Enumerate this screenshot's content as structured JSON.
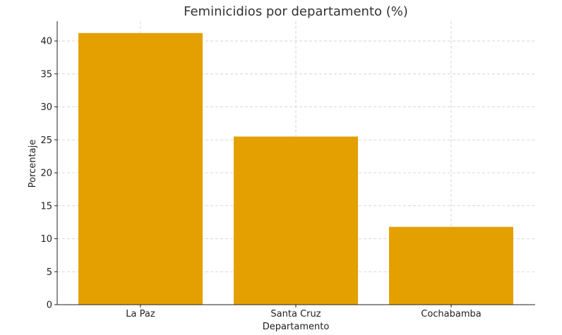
{
  "chart_data": {
    "type": "bar",
    "title": "Feminicidios por departamento (%)",
    "xlabel": "Departamento",
    "ylabel": "Porcentaje",
    "categories": [
      "La Paz",
      "Santa Cruz",
      "Cochabamba"
    ],
    "values": [
      41.2,
      25.5,
      11.8
    ],
    "ylim": [
      0,
      43
    ],
    "yticks": [
      0,
      5,
      10,
      15,
      20,
      25,
      30,
      35,
      40
    ],
    "grid": true,
    "bar_color": "#E3A000"
  }
}
